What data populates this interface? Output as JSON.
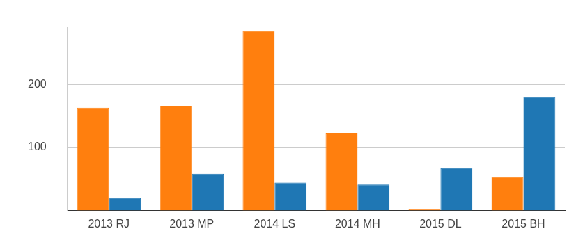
{
  "chart_data": {
    "type": "bar",
    "categories": [
      "2013 RJ",
      "2013 MP",
      "2014 LS",
      "2014 MH",
      "2015 DL",
      "2015 BH"
    ],
    "series": [
      {
        "color": "#ff7f0e",
        "values": [
          163,
          166,
          285,
          123,
          2,
          53
        ]
      },
      {
        "color": "#1f77b4",
        "values": [
          20,
          58,
          44,
          41,
          67,
          180
        ]
      }
    ],
    "ylim": [
      0,
      290
    ],
    "yticks": [
      100,
      200
    ],
    "grid": true
  }
}
